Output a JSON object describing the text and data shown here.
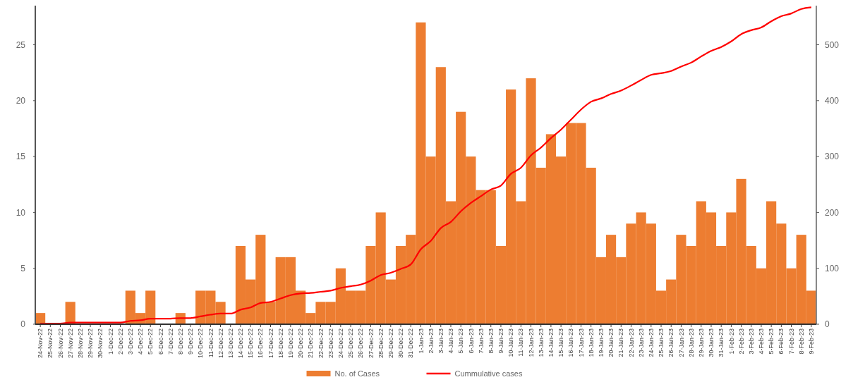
{
  "chart_data": {
    "type": "bar",
    "categories": [
      "24-Nov-22",
      "25-Nov-22",
      "26-Nov-22",
      "27-Nov-22",
      "28-Nov-22",
      "29-Nov-22",
      "30-Nov-22",
      "1-Dec-22",
      "2-Dec-22",
      "3-Dec-22",
      "4-Dec-22",
      "5-Dec-22",
      "6-Dec-22",
      "7-Dec-22",
      "8-Dec-22",
      "9-Dec-22",
      "10-Dec-22",
      "11-Dec-22",
      "12-Dec-22",
      "13-Dec-22",
      "14-Dec-22",
      "15-Dec-22",
      "16-Dec-22",
      "17-Dec-22",
      "18-Dec-22",
      "19-Dec-22",
      "20-Dec-22",
      "21-Dec-22",
      "22-Dec-22",
      "23-Dec-22",
      "24-Dec-22",
      "25-Dec-22",
      "26-Dec-22",
      "27-Dec-22",
      "28-Dec-22",
      "29-Dec-22",
      "30-Dec-22",
      "31-Dec-22",
      "1-Jan-23",
      "2-Jan-23",
      "3-Jan-23",
      "4-Jan-23",
      "5-Jan-23",
      "6-Jan-23",
      "7-Jan-23",
      "8-Jan-23",
      "9-Jan-23",
      "10-Jan-23",
      "11-Jan-23",
      "12-Jan-23",
      "13-Jan-23",
      "14-Jan-23",
      "15-Jan-23",
      "16-Jan-23",
      "17-Jan-23",
      "18-Jan-23",
      "19-Jan-23",
      "20-Jan-23",
      "21-Jan-23",
      "22-Jan-23",
      "23-Jan-23",
      "24-Jan-23",
      "25-Jan-23",
      "26-Jan-23",
      "27-Jan-23",
      "28-Jan-23",
      "29-Jan-23",
      "30-Jan-23",
      "31-Jan-23",
      "1-Feb-23",
      "2-Feb-23",
      "3-Feb-23",
      "4-Feb-23",
      "5-Feb-23",
      "6-Feb-23",
      "7-Feb-23",
      "8-Feb-23",
      "9-Feb-23"
    ],
    "series": [
      {
        "name": "No. of Cases",
        "color": "#ed7d31",
        "values": [
          1,
          0,
          0,
          2,
          0,
          0,
          0,
          0,
          0,
          3,
          1,
          3,
          0,
          0,
          1,
          0,
          3,
          3,
          2,
          0,
          7,
          4,
          8,
          2,
          6,
          6,
          3,
          1,
          2,
          2,
          5,
          3,
          3,
          7,
          10,
          4,
          7,
          8,
          27,
          15,
          23,
          11,
          19,
          15,
          12,
          12,
          7,
          21,
          11,
          22,
          14,
          17,
          15,
          18,
          18,
          14,
          6,
          8,
          6,
          9,
          10,
          9,
          3,
          4,
          8,
          7,
          11,
          10,
          7,
          10,
          13,
          7,
          5,
          11,
          9,
          5,
          8,
          3
        ]
      },
      {
        "name": "Cummulative cases",
        "type": "line",
        "axis": "y2",
        "color": "#ff0000",
        "values": [
          1,
          1,
          1,
          3,
          3,
          3,
          3,
          3,
          3,
          6,
          7,
          10,
          10,
          10,
          11,
          11,
          14,
          17,
          19,
          19,
          26,
          30,
          38,
          40,
          46,
          52,
          55,
          56,
          58,
          60,
          65,
          68,
          71,
          78,
          88,
          92,
          99,
          107,
          134,
          149,
          172,
          183,
          202,
          217,
          229,
          241,
          248,
          269,
          280,
          302,
          316,
          333,
          348,
          366,
          384,
          398,
          404,
          412,
          418,
          427,
          437,
          446,
          449,
          453,
          461,
          468,
          479,
          489,
          496,
          506,
          519,
          526,
          531,
          542,
          551,
          556,
          564,
          567
        ]
      }
    ],
    "ylim": [
      0,
      28.5
    ],
    "yticks": [
      0,
      5,
      10,
      15,
      20,
      25
    ],
    "y2lim": [
      0,
      570
    ],
    "y2ticks": [
      0,
      100,
      200,
      300,
      400,
      500
    ],
    "legend": "bottom",
    "grid": false,
    "marker": "none",
    "line_style": "solid"
  }
}
